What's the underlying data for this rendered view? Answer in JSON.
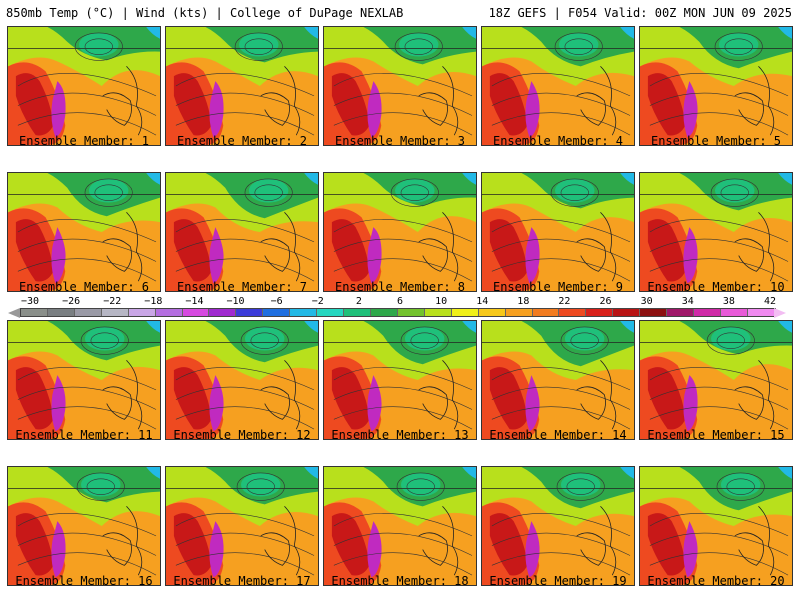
{
  "header": {
    "left_title": "850mb Temp (°C) | Wind (kts) | College of DuPage NEXLAB",
    "right_title": "18Z GEFS | F054 Valid: 00Z MON JUN 09 2025"
  },
  "colorbar": {
    "tick_labels": [
      "−30",
      "−26",
      "−22",
      "−18",
      "−14",
      "−10",
      "−6",
      "−2",
      "2",
      "6",
      "10",
      "14",
      "18",
      "22",
      "26",
      "30",
      "34",
      "38",
      "42"
    ],
    "colors": [
      "#8a8f8a",
      "#7a7f82",
      "#9a9aa6",
      "#b6b6c4",
      "#c9a6e6",
      "#b46ee0",
      "#d64ae0",
      "#a02ad0",
      "#3b3bd8",
      "#1f6fe0",
      "#22b9e6",
      "#25d6c0",
      "#1fc07a",
      "#2ea84a",
      "#72c22c",
      "#b8e01c",
      "#f0f018",
      "#f6c81a",
      "#f6a020",
      "#f27c20",
      "#ee4a20",
      "#d8201a",
      "#b81414",
      "#8c1010",
      "#a0186a",
      "#d02aa8",
      "#e85ad8",
      "#f08af0"
    ]
  },
  "panels": [
    {
      "label": "Ensemble Member: 1"
    },
    {
      "label": "Ensemble Member: 2"
    },
    {
      "label": "Ensemble Member: 3"
    },
    {
      "label": "Ensemble Member: 4"
    },
    {
      "label": "Ensemble Member: 5"
    },
    {
      "label": "Ensemble Member: 6"
    },
    {
      "label": "Ensemble Member: 7"
    },
    {
      "label": "Ensemble Member: 8"
    },
    {
      "label": "Ensemble Member: 9"
    },
    {
      "label": "Ensemble Member: 10"
    },
    {
      "label": "Ensemble Member: 11"
    },
    {
      "label": "Ensemble Member: 12"
    },
    {
      "label": "Ensemble Member: 13"
    },
    {
      "label": "Ensemble Member: 14"
    },
    {
      "label": "Ensemble Member: 15"
    },
    {
      "label": "Ensemble Member: 16"
    },
    {
      "label": "Ensemble Member: 17"
    },
    {
      "label": "Ensemble Member: 18"
    },
    {
      "label": "Ensemble Member: 19"
    },
    {
      "label": "Ensemble Member: 20"
    }
  ],
  "map_colors": {
    "hot_core": "#c81818",
    "hot": "#ee4a20",
    "warm": "#f6a020",
    "mild": "#f6c81a",
    "cool": "#b8e01c",
    "cold": "#2ea84a",
    "colder": "#1fc07a",
    "coldest": "#22b9e6",
    "extreme": "#c02ac0"
  }
}
